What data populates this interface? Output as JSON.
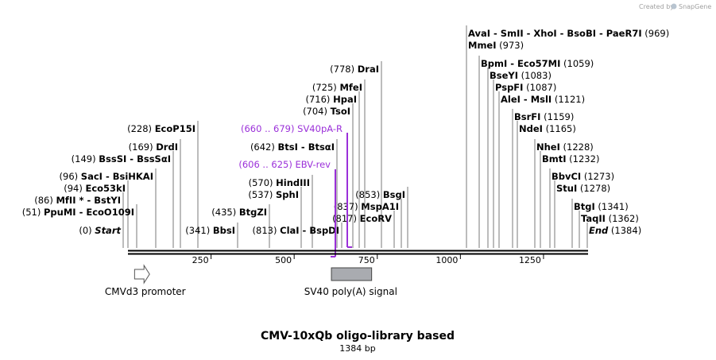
{
  "credit": {
    "prefix": "Created by",
    "brand": "SnapGene"
  },
  "title": "CMV-10xQb oligo-library based",
  "length_label": "1384 bp",
  "sequence_length": 1384,
  "colors": {
    "primer": "#9b30d9",
    "feature_box": "#a9abb0",
    "backbone": "#000000"
  },
  "axis_ticks": [
    {
      "label": "250",
      "value": 250
    },
    {
      "label": "500",
      "value": 500
    },
    {
      "label": "750",
      "value": 750
    },
    {
      "label": "1000",
      "value": 1000
    },
    {
      "label": "1250",
      "value": 1250
    }
  ],
  "features": [
    {
      "name": "CMVd3 promoter",
      "start": 20,
      "end": 65,
      "type": "arrow",
      "icon": "right-arrow-icon"
    },
    {
      "name": "SV40 poly(A) signal",
      "start": 612,
      "end": 733,
      "type": "box"
    }
  ],
  "primers": [
    {
      "range": "(660 .. 679)",
      "name": "SV40pA-R",
      "start": 660,
      "end": 679,
      "direction": "reverse"
    },
    {
      "range": "(606 .. 625)",
      "name": "EBV-rev",
      "start": 606,
      "end": 625,
      "direction": "reverse"
    }
  ],
  "sites": [
    {
      "names": [
        "AvaI",
        "SmII",
        "XhoI",
        "BsoBI",
        "PaeR7I"
      ],
      "pos": "(969)",
      "cut": 969,
      "side": "right"
    },
    {
      "names": [
        "MmeI"
      ],
      "pos": "(973)",
      "cut": 973,
      "side": "right"
    },
    {
      "names": [
        "BpmI",
        "Eco57MI"
      ],
      "pos": "(1059)",
      "cut": 1059,
      "side": "right"
    },
    {
      "names": [
        "BseYI"
      ],
      "pos": "(1083)",
      "cut": 1083,
      "side": "right"
    },
    {
      "names": [
        "PspFI"
      ],
      "pos": "(1087)",
      "cut": 1087,
      "side": "right"
    },
    {
      "names": [
        "AleI",
        "MslI"
      ],
      "pos": "(1121)",
      "cut": 1121,
      "side": "right"
    },
    {
      "names": [
        "BsrFI"
      ],
      "pos": "(1159)",
      "cut": 1159,
      "side": "right"
    },
    {
      "names": [
        "NdeI"
      ],
      "pos": "(1165)",
      "cut": 1165,
      "side": "right"
    },
    {
      "names": [
        "NheI"
      ],
      "pos": "(1228)",
      "cut": 1228,
      "side": "right"
    },
    {
      "names": [
        "BmtI"
      ],
      "pos": "(1232)",
      "cut": 1232,
      "side": "right"
    },
    {
      "names": [
        "BbvCI"
      ],
      "pos": "(1273)",
      "cut": 1273,
      "side": "right"
    },
    {
      "names": [
        "StuI"
      ],
      "pos": "(1278)",
      "cut": 1278,
      "side": "right"
    },
    {
      "names": [
        "BtgI"
      ],
      "pos": "(1341)",
      "cut": 1341,
      "side": "right"
    },
    {
      "names": [
        "TaqII"
      ],
      "pos": "(1362)",
      "cut": 1362,
      "side": "right"
    },
    {
      "names": [
        "End"
      ],
      "pos": "(1384)",
      "cut": 1384,
      "side": "right",
      "italic": true
    },
    {
      "names": [
        "DraI"
      ],
      "pos": "(778)",
      "cut": 778,
      "side": "left"
    },
    {
      "names": [
        "MfeI"
      ],
      "pos": "(725)",
      "cut": 725,
      "side": "left"
    },
    {
      "names": [
        "HpaI"
      ],
      "pos": "(716)",
      "cut": 716,
      "side": "left"
    },
    {
      "names": [
        "TsoI"
      ],
      "pos": "(704)",
      "cut": 704,
      "side": "left"
    },
    {
      "names": [
        "EcoP15I"
      ],
      "pos": "(228)",
      "cut": 228,
      "side": "left"
    },
    {
      "names": [
        "BtsI",
        "BtsαI"
      ],
      "pos": "(642)",
      "cut": 642,
      "side": "left"
    },
    {
      "names": [
        "DrdI"
      ],
      "pos": "(169)",
      "cut": 169,
      "side": "left"
    },
    {
      "names": [
        "BssSI",
        "BssSαI"
      ],
      "pos": "(149)",
      "cut": 149,
      "side": "left"
    },
    {
      "names": [
        "SacI",
        "BsiHKAI"
      ],
      "pos": "(96)",
      "cut": 96,
      "side": "left"
    },
    {
      "names": [
        "HindIII"
      ],
      "pos": "(570)",
      "cut": 570,
      "side": "left"
    },
    {
      "names": [
        "Eco53kI"
      ],
      "pos": "(94)",
      "cut": 94,
      "side": "left"
    },
    {
      "names": [
        "SphI"
      ],
      "pos": "(537)",
      "cut": 537,
      "side": "left"
    },
    {
      "names": [
        "BsgI"
      ],
      "pos": "(853)",
      "cut": 853,
      "side": "left"
    },
    {
      "names": [
        "MfII *",
        "BstYI"
      ],
      "pos": "(86)",
      "cut": 86,
      "side": "left"
    },
    {
      "names": [
        "MspA1I"
      ],
      "pos": "(837)",
      "cut": 837,
      "side": "left"
    },
    {
      "names": [
        "PpuMI",
        "EcoO109I"
      ],
      "pos": "(51)",
      "cut": 51,
      "side": "left"
    },
    {
      "names": [
        "BtgZI"
      ],
      "pos": "(435)",
      "cut": 435,
      "side": "left"
    },
    {
      "names": [
        "EcoRV"
      ],
      "pos": "(817)",
      "cut": 817,
      "side": "left"
    },
    {
      "names": [
        "Start"
      ],
      "pos": "(0)",
      "cut": 0,
      "side": "left",
      "italic": true
    },
    {
      "names": [
        "BbsI"
      ],
      "pos": "(341)",
      "cut": 341,
      "side": "left"
    },
    {
      "names": [
        "ClaI",
        "BspDI"
      ],
      "pos": "(813)",
      "cut": 813,
      "side": "left"
    }
  ]
}
